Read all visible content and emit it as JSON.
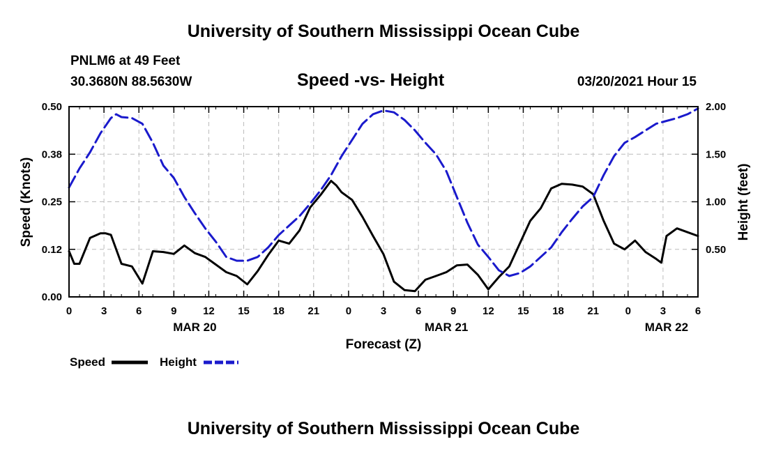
{
  "header": {
    "top_title": "University of Southern Mississippi Ocean Cube",
    "bottom_title": "University of Southern Mississippi Ocean Cube",
    "station": "PNLM6 at 49 Feet",
    "coords": "30.3680N 88.5630W",
    "datetime": "03/20/2021 Hour 15"
  },
  "chart_data": {
    "type": "line",
    "title": "Speed -vs- Height",
    "xlabel": "Forecast (Z)",
    "ylabel_left": "Speed (Knots)",
    "ylabel_right": "Height (feet)",
    "x_range": [
      0,
      60
    ],
    "x_tick_labels": [
      "0",
      "3",
      "6",
      "9",
      "12",
      "15",
      "18",
      "21",
      "0",
      "3",
      "6",
      "9",
      "12",
      "15",
      "18",
      "21",
      "0",
      "3",
      "6"
    ],
    "date_labels": [
      {
        "label": "MAR 20",
        "hour": 12
      },
      {
        "label": "MAR 21",
        "hour": 36
      },
      {
        "label": "MAR 22",
        "hour": 57
      }
    ],
    "ylim_left": [
      0,
      0.5
    ],
    "left_ticks": [
      0.0,
      0.125,
      0.25,
      0.375,
      0.5
    ],
    "left_tick_labels": [
      "0.00",
      "0.12",
      "0.25",
      "0.38",
      "0.50"
    ],
    "ylim_right": [
      0.0,
      2.0
    ],
    "right_ticks": [
      0.5,
      1.0,
      1.5,
      2.0
    ],
    "right_tick_labels": [
      "0.50",
      "1.00",
      "1.50",
      "2.00"
    ],
    "grid": true,
    "legend": [
      {
        "name": "Speed",
        "color": "#000000",
        "style": "solid"
      },
      {
        "name": "Height",
        "color": "#1a1acc",
        "style": "dashed"
      }
    ],
    "series": [
      {
        "name": "Speed",
        "axis": "left",
        "color": "#000000",
        "x": [
          0,
          0.5,
          1,
          2,
          3,
          3.5,
          4,
          5,
          6,
          7,
          8,
          9,
          10,
          11,
          12,
          13,
          14,
          15,
          16,
          17,
          18,
          19,
          20,
          21,
          22,
          23,
          24,
          25,
          25.5,
          26,
          27,
          28,
          29,
          30,
          31,
          32,
          33,
          34,
          35,
          36,
          37,
          38,
          39,
          40,
          41,
          42,
          43,
          44,
          45,
          46,
          47,
          48,
          49,
          50,
          51,
          52,
          53,
          54,
          55,
          56,
          56.5,
          57,
          58,
          59,
          60
        ],
        "values": [
          0.12,
          0.087,
          0.087,
          0.155,
          0.167,
          0.167,
          0.163,
          0.087,
          0.08,
          0.035,
          0.12,
          0.118,
          0.113,
          0.135,
          0.115,
          0.105,
          0.085,
          0.065,
          0.055,
          0.033,
          0.068,
          0.11,
          0.148,
          0.14,
          0.175,
          0.235,
          0.268,
          0.305,
          0.293,
          0.275,
          0.255,
          0.21,
          0.16,
          0.112,
          0.04,
          0.018,
          0.015,
          0.045,
          0.055,
          0.065,
          0.083,
          0.085,
          0.058,
          0.02,
          0.052,
          0.08,
          0.14,
          0.2,
          0.233,
          0.285,
          0.297,
          0.295,
          0.29,
          0.27,
          0.2,
          0.14,
          0.125,
          0.148,
          0.118,
          0.1,
          0.09,
          0.16,
          0.18,
          0.17,
          0.16
        ]
      },
      {
        "name": "Height",
        "axis": "right",
        "color": "#1a1acc",
        "x": [
          0,
          1,
          2,
          3,
          4,
          4.5,
          5,
          6,
          7,
          8,
          9,
          10,
          11,
          12,
          13,
          14,
          15,
          16,
          17,
          18,
          19,
          20,
          21,
          22,
          23,
          24,
          25,
          26,
          27,
          28,
          29,
          30,
          31,
          32,
          33,
          34,
          35,
          36,
          37,
          38,
          39,
          40,
          41,
          42,
          43,
          44,
          45,
          46,
          47,
          48,
          49,
          50,
          51,
          52,
          53,
          54,
          55,
          56,
          57,
          58,
          59,
          60
        ],
        "values": [
          1.15,
          1.35,
          1.52,
          1.72,
          1.88,
          1.92,
          1.89,
          1.88,
          1.82,
          1.62,
          1.38,
          1.25,
          1.05,
          0.88,
          0.72,
          0.58,
          0.42,
          0.38,
          0.38,
          0.42,
          0.52,
          0.65,
          0.75,
          0.85,
          0.98,
          1.12,
          1.28,
          1.48,
          1.65,
          1.82,
          1.92,
          1.96,
          1.94,
          1.86,
          1.75,
          1.62,
          1.5,
          1.32,
          1.05,
          0.78,
          0.55,
          0.42,
          0.28,
          0.22,
          0.25,
          0.32,
          0.42,
          0.52,
          0.68,
          0.82,
          0.95,
          1.05,
          1.28,
          1.48,
          1.62,
          1.68,
          1.75,
          1.82,
          1.85,
          1.88,
          1.92,
          1.98
        ]
      }
    ]
  }
}
